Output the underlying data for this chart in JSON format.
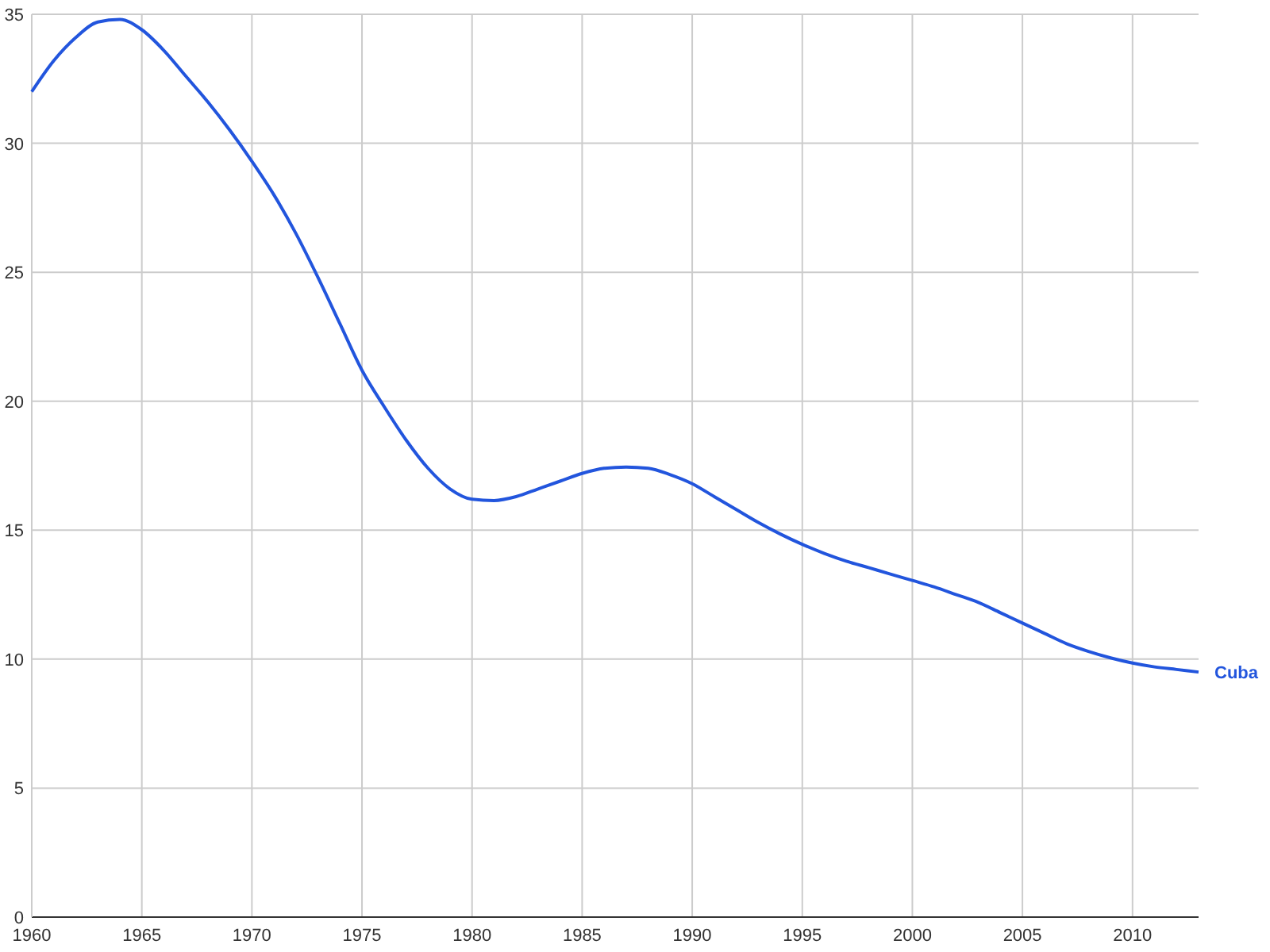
{
  "chart_data": {
    "type": "line",
    "xlim": [
      1960,
      2013
    ],
    "xticks": [
      1960,
      1965,
      1970,
      1975,
      1980,
      1985,
      1990,
      1995,
      2000,
      2005,
      2010
    ],
    "ylim": [
      0,
      35
    ],
    "yticks": [
      0,
      5,
      10,
      15,
      20,
      25,
      30,
      35
    ],
    "grid": true,
    "x": [
      1960,
      1961,
      1962,
      1963,
      1964,
      1965,
      1966,
      1967,
      1968,
      1969,
      1970,
      1971,
      1972,
      1973,
      1974,
      1975,
      1976,
      1977,
      1978,
      1979,
      1980,
      1981,
      1982,
      1983,
      1984,
      1985,
      1986,
      1987,
      1988,
      1989,
      1990,
      1991,
      1992,
      1993,
      1994,
      1995,
      1996,
      1997,
      1998,
      1999,
      2000,
      2001,
      2002,
      2003,
      2004,
      2005,
      2006,
      2007,
      2008,
      2009,
      2010,
      2011,
      2012,
      2013
    ],
    "series": [
      {
        "name": "Cuba",
        "color": "#2255dd",
        "values": [
          32.0,
          33.2,
          34.1,
          34.7,
          34.8,
          34.4,
          33.6,
          32.6,
          31.6,
          30.5,
          29.3,
          28.0,
          26.5,
          24.8,
          23.0,
          21.2,
          19.8,
          18.5,
          17.4,
          16.6,
          16.2,
          16.15,
          16.3,
          16.6,
          16.9,
          17.2,
          17.4,
          17.45,
          17.4,
          17.15,
          16.8,
          16.3,
          15.8,
          15.3,
          14.85,
          14.45,
          14.1,
          13.8,
          13.55,
          13.3,
          13.05,
          12.8,
          12.5,
          12.2,
          11.8,
          11.4,
          11.0,
          10.6,
          10.3,
          10.05,
          9.85,
          9.7,
          9.6,
          9.5
        ]
      }
    ]
  }
}
